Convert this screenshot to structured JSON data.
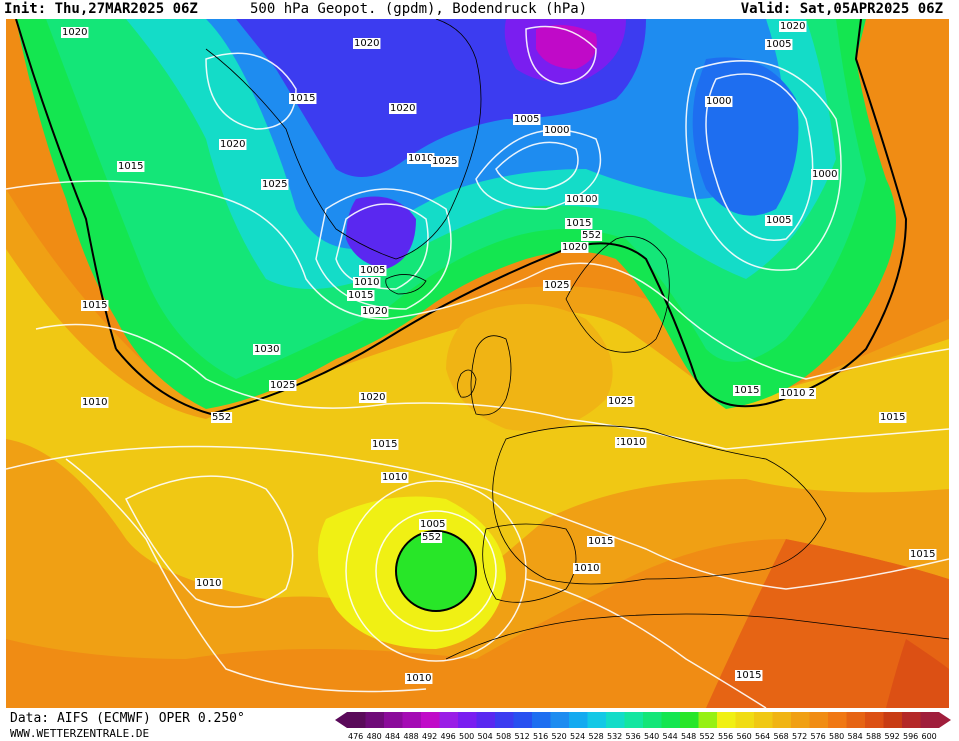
{
  "header": {
    "init": "Init: Thu,27MAR2025 06Z",
    "title": "500 hPa Geopot. (gpdm), Bodendruck (hPa)",
    "valid": "Valid: Sat,05APR2025 06Z"
  },
  "footer": {
    "data_source": "Data: AIFS (ECMWF) OPER 0.250°",
    "website": "WWW.WETTERZENTRALE.DE"
  },
  "legend": {
    "values": [
      "476",
      "480",
      "484",
      "488",
      "492",
      "496",
      "500",
      "504",
      "508",
      "512",
      "516",
      "520",
      "524",
      "528",
      "532",
      "536",
      "540",
      "544",
      "548",
      "552",
      "556",
      "560",
      "564",
      "568",
      "572",
      "576",
      "580",
      "584",
      "588",
      "592",
      "596",
      "600"
    ],
    "colors": [
      "#5a0a5a",
      "#6e0a78",
      "#8a0a9a",
      "#a40ab4",
      "#c00ac8",
      "#9a1ee6",
      "#7a1ef0",
      "#5a28f0",
      "#3c3cf0",
      "#2850f0",
      "#1e6ef0",
      "#1e8cf0",
      "#14aaf0",
      "#14c8e6",
      "#14dcc8",
      "#14e6a0",
      "#14e678",
      "#14e650",
      "#28e628",
      "#96f014",
      "#f0f014",
      "#f0dc14",
      "#f0c814",
      "#f0b414",
      "#f0a014",
      "#f08c14",
      "#f07814",
      "#e66414",
      "#dc5014",
      "#c83c14",
      "#b42828",
      "#a01e3c"
    ]
  },
  "isobar_labels": [
    "1020",
    "1015",
    "1020",
    "1025",
    "1015",
    "1030",
    "1025",
    "1010",
    "1015",
    "552",
    "1020",
    "1020",
    "1005",
    "1010",
    "1010",
    "1015",
    "1020",
    "1025",
    "1005",
    "1000",
    "1010",
    "1015",
    "552",
    "1020",
    "1025",
    "1020",
    "1000",
    "1000",
    "1005",
    "1005",
    "1010",
    "1015",
    "1010 2",
    "1015",
    "1015",
    "1020",
    "1025",
    "1015",
    "1010",
    "1010",
    "1005",
    "552",
    "1015",
    "1010",
    "1015",
    "1010",
    "1010",
    "1015"
  ]
}
